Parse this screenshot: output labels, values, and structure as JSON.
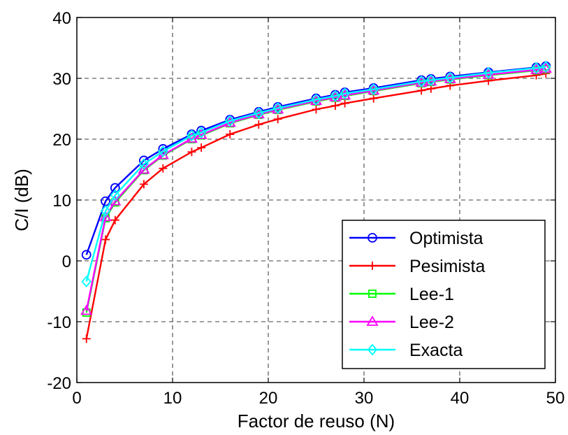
{
  "chart_data": {
    "type": "line",
    "title": "",
    "xlabel": "Factor de reuso (N)",
    "ylabel": "C/I (dB)",
    "xlim": [
      0,
      50
    ],
    "ylim": [
      -20,
      40
    ],
    "xticks": [
      0,
      10,
      20,
      30,
      40,
      50
    ],
    "yticks": [
      -20,
      -10,
      0,
      10,
      20,
      30,
      40
    ],
    "grid": true,
    "legend_position": "bottom-right",
    "x": [
      1,
      3,
      4,
      7,
      9,
      12,
      13,
      16,
      19,
      21,
      25,
      27,
      28,
      31,
      36,
      37,
      39,
      43,
      48,
      49
    ],
    "series": [
      {
        "name": "Optimista",
        "color": "#0000ff",
        "marker": "circle",
        "values": [
          1.0,
          9.8,
          12.0,
          16.5,
          18.4,
          20.8,
          21.4,
          23.2,
          24.5,
          25.3,
          26.7,
          27.3,
          27.7,
          28.4,
          29.7,
          29.9,
          30.3,
          31.0,
          31.8,
          32.0
        ]
      },
      {
        "name": "Pesimista",
        "color": "#ff0000",
        "marker": "plus",
        "values": [
          -12.8,
          3.5,
          6.7,
          12.6,
          15.2,
          17.9,
          18.6,
          20.8,
          22.4,
          23.3,
          24.9,
          25.5,
          25.9,
          26.7,
          28.0,
          28.3,
          28.8,
          29.6,
          30.5,
          30.8
        ]
      },
      {
        "name": "Lee-1",
        "color": "#00ff00",
        "marker": "square",
        "values": [
          -8.5,
          7.0,
          9.6,
          14.9,
          17.3,
          20.0,
          20.6,
          22.6,
          24.0,
          24.8,
          26.2,
          26.8,
          27.1,
          27.9,
          29.2,
          29.4,
          29.8,
          30.5,
          31.3,
          31.5
        ]
      },
      {
        "name": "Lee-2",
        "color": "#ff00ff",
        "marker": "triangle",
        "values": [
          -8.2,
          7.2,
          9.8,
          15.0,
          17.4,
          20.1,
          20.7,
          22.7,
          24.1,
          24.9,
          26.3,
          26.9,
          27.2,
          28.0,
          29.3,
          29.5,
          29.9,
          30.6,
          31.4,
          31.6
        ]
      },
      {
        "name": "Exacta",
        "color": "#00ffff",
        "marker": "diamond",
        "values": [
          -3.4,
          8.2,
          10.8,
          15.9,
          18.0,
          20.6,
          21.1,
          23.0,
          24.3,
          25.1,
          26.5,
          27.1,
          27.5,
          28.2,
          29.5,
          29.7,
          30.1,
          30.9,
          31.7,
          31.9
        ]
      }
    ]
  }
}
